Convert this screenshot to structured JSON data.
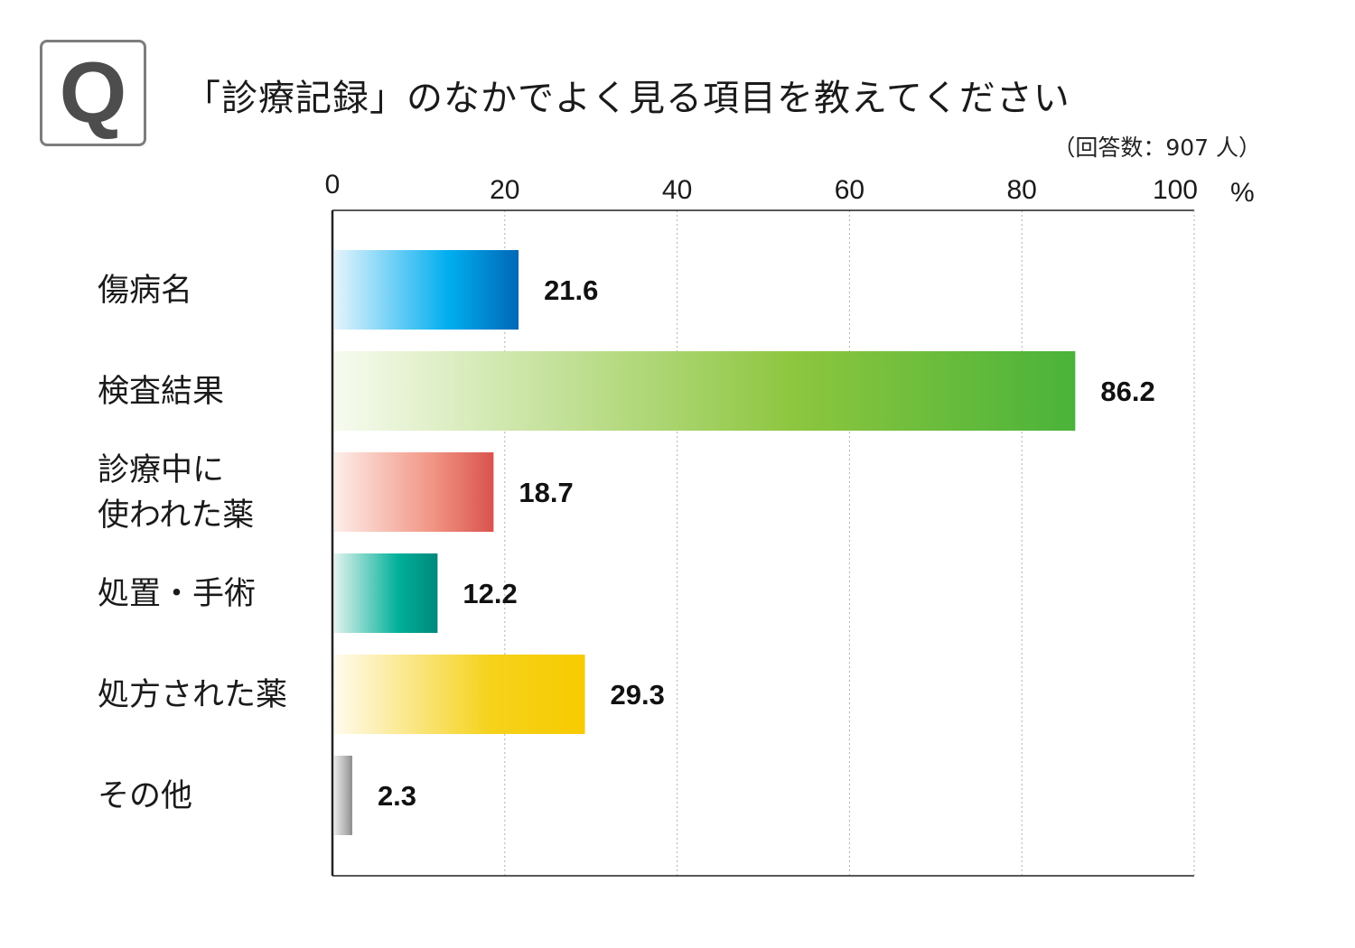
{
  "header": {
    "badge": "Q",
    "question": "「診療記録」のなかでよく見る項目を教えてください",
    "respondents": "（回答数：907 人）"
  },
  "chart_data": {
    "type": "bar",
    "orientation": "horizontal",
    "title": "「診療記録」のなかでよく見る項目を教えてください",
    "note": "（回答数：907 人）",
    "xlim": [
      0,
      100
    ],
    "x_ticks": [
      "0",
      "20",
      "40",
      "60",
      "80",
      "100"
    ],
    "x_unit": "%",
    "grid": true,
    "categories": [
      [
        "傷病名"
      ],
      [
        "検査結果"
      ],
      [
        "診療中に",
        "使われた薬"
      ],
      [
        "処置・手術"
      ],
      [
        "処方された薬"
      ],
      [
        "その他"
      ]
    ],
    "values": [
      21.6,
      86.2,
      18.7,
      12.2,
      29.3,
      2.3
    ],
    "value_labels": [
      "21.6",
      "86.2",
      "18.7",
      "12.2",
      "29.3",
      "2.3"
    ],
    "colors": [
      [
        "#e6f4fd",
        "#00aeef",
        "#0068b7"
      ],
      [
        "#f7fbef",
        "#8dc63f",
        "#4ab339"
      ],
      [
        "#fdeee9",
        "#f19483",
        "#d9534e"
      ],
      [
        "#e2f3ee",
        "#00b09a",
        "#00887b"
      ],
      [
        "#fffbee",
        "#f6d21c",
        "#f7cb00"
      ],
      [
        "#e8e8e8",
        "#b5b5b5",
        "#8c8c8c"
      ]
    ]
  }
}
